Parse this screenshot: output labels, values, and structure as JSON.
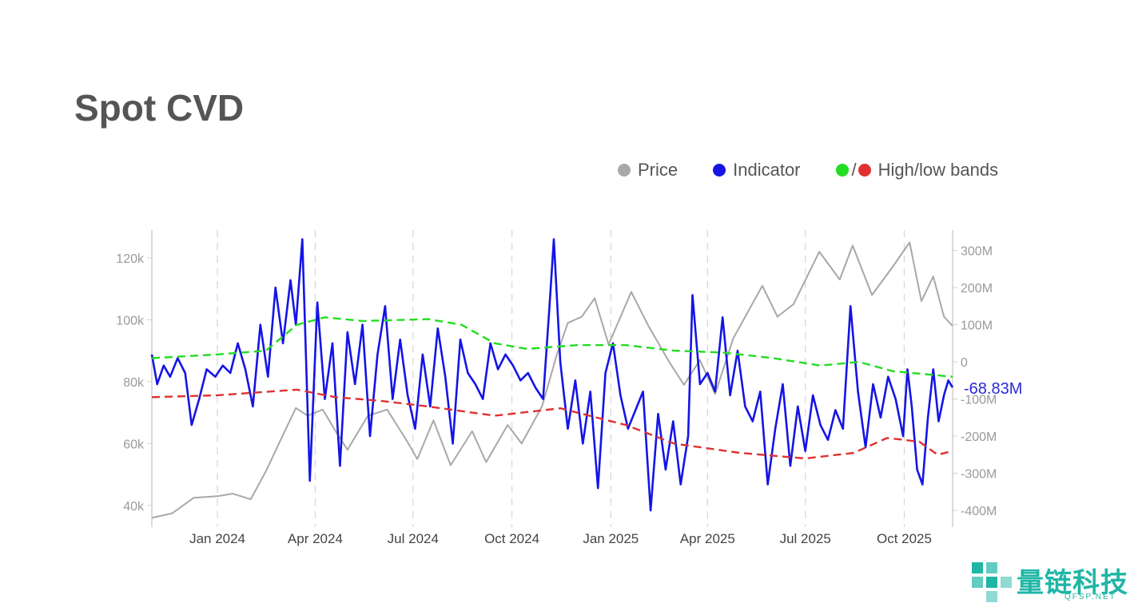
{
  "title": "Spot CVD",
  "legend": {
    "price_label": "Price",
    "indicator_label": "Indicator",
    "slash": "/",
    "bands_label": "High/low bands"
  },
  "colors": {
    "price": "#a8a8a8",
    "indicator": "#1414e6",
    "high_band": "#22dd22",
    "low_band": "#e03030",
    "axis_text": "#9a9a9a",
    "current_value": "#2a2ad8"
  },
  "watermark": {
    "text": "量链科技",
    "sub": "QFSP.NET"
  },
  "chart_data": {
    "type": "line",
    "title": "Spot CVD",
    "x_range": [
      "2023-11-01",
      "2025-11-15"
    ],
    "x_ticks": [
      {
        "date": "2024-01-01",
        "label": "Jan 2024"
      },
      {
        "date": "2024-04-01",
        "label": "Apr 2024"
      },
      {
        "date": "2024-07-01",
        "label": "Jul 2024"
      },
      {
        "date": "2024-10-01",
        "label": "Oct 2024"
      },
      {
        "date": "2025-01-01",
        "label": "Jan 2025"
      },
      {
        "date": "2025-04-01",
        "label": "Apr 2025"
      },
      {
        "date": "2025-07-01",
        "label": "Jul 2025"
      },
      {
        "date": "2025-10-01",
        "label": "Oct 2025"
      }
    ],
    "y_left": {
      "min": 33000,
      "max": 129000,
      "ticks": [
        40000,
        60000,
        80000,
        100000,
        120000
      ],
      "tick_labels": [
        "40k",
        "60k",
        "80k",
        "100k",
        "120k"
      ]
    },
    "y_right": {
      "min": -445,
      "max": 355,
      "ticks": [
        300,
        200,
        100,
        0,
        -100,
        -200,
        -300,
        -400
      ],
      "tick_labels": [
        "300M",
        "200M",
        "100M",
        "0",
        "-100M",
        "-200M",
        "-300M",
        "-400M"
      ]
    },
    "current_value_label": "-68.83M",
    "series": [
      {
        "name": "Price",
        "axis": "left",
        "style": "solid",
        "points": [
          [
            "2023-11-01",
            36000
          ],
          [
            "2023-11-20",
            37500
          ],
          [
            "2023-12-10",
            42500
          ],
          [
            "2024-01-01",
            43000
          ],
          [
            "2024-01-15",
            43800
          ],
          [
            "2024-02-01",
            42000
          ],
          [
            "2024-02-15",
            51000
          ],
          [
            "2024-03-01",
            62000
          ],
          [
            "2024-03-14",
            71500
          ],
          [
            "2024-03-25",
            69000
          ],
          [
            "2024-04-08",
            71000
          ],
          [
            "2024-04-20",
            64000
          ],
          [
            "2024-05-01",
            58000
          ],
          [
            "2024-05-20",
            69000
          ],
          [
            "2024-06-07",
            71000
          ],
          [
            "2024-06-25",
            61000
          ],
          [
            "2024-07-05",
            55000
          ],
          [
            "2024-07-20",
            67500
          ],
          [
            "2024-08-05",
            53000
          ],
          [
            "2024-08-25",
            64000
          ],
          [
            "2024-09-07",
            54000
          ],
          [
            "2024-09-27",
            66000
          ],
          [
            "2024-10-10",
            60000
          ],
          [
            "2024-10-29",
            72000
          ],
          [
            "2024-11-12",
            89000
          ],
          [
            "2024-11-22",
            99000
          ],
          [
            "2024-12-05",
            101000
          ],
          [
            "2024-12-17",
            107000
          ],
          [
            "2024-12-30",
            92000
          ],
          [
            "2025-01-20",
            109000
          ],
          [
            "2025-02-05",
            98000
          ],
          [
            "2025-02-25",
            86000
          ],
          [
            "2025-03-10",
            79000
          ],
          [
            "2025-03-25",
            87000
          ],
          [
            "2025-04-08",
            76000
          ],
          [
            "2025-04-25",
            94000
          ],
          [
            "2025-05-22",
            111000
          ],
          [
            "2025-06-05",
            101000
          ],
          [
            "2025-06-20",
            105000
          ],
          [
            "2025-07-14",
            122000
          ],
          [
            "2025-08-02",
            113000
          ],
          [
            "2025-08-14",
            124000
          ],
          [
            "2025-09-01",
            108000
          ],
          [
            "2025-09-20",
            117000
          ],
          [
            "2025-10-06",
            125000
          ],
          [
            "2025-10-17",
            106000
          ],
          [
            "2025-10-28",
            114000
          ],
          [
            "2025-11-07",
            101000
          ],
          [
            "2025-11-15",
            98000
          ]
        ]
      },
      {
        "name": "Indicator",
        "axis": "right",
        "style": "solid",
        "points": [
          [
            "2023-11-01",
            20
          ],
          [
            "2023-11-06",
            -60
          ],
          [
            "2023-11-12",
            -10
          ],
          [
            "2023-11-18",
            -40
          ],
          [
            "2023-11-25",
            10
          ],
          [
            "2023-12-02",
            -30
          ],
          [
            "2023-12-08",
            -170
          ],
          [
            "2023-12-15",
            -100
          ],
          [
            "2023-12-22",
            -20
          ],
          [
            "2023-12-30",
            -40
          ],
          [
            "2024-01-06",
            -10
          ],
          [
            "2024-01-13",
            -30
          ],
          [
            "2024-01-20",
            50
          ],
          [
            "2024-01-27",
            -20
          ],
          [
            "2024-02-03",
            -120
          ],
          [
            "2024-02-10",
            100
          ],
          [
            "2024-02-17",
            -40
          ],
          [
            "2024-02-24",
            200
          ],
          [
            "2024-03-02",
            50
          ],
          [
            "2024-03-09",
            220
          ],
          [
            "2024-03-14",
            100
          ],
          [
            "2024-03-20",
            330
          ],
          [
            "2024-03-27",
            -320
          ],
          [
            "2024-04-03",
            160
          ],
          [
            "2024-04-10",
            -100
          ],
          [
            "2024-04-17",
            50
          ],
          [
            "2024-04-24",
            -280
          ],
          [
            "2024-05-01",
            80
          ],
          [
            "2024-05-08",
            -60
          ],
          [
            "2024-05-15",
            100
          ],
          [
            "2024-05-22",
            -200
          ],
          [
            "2024-05-29",
            20
          ],
          [
            "2024-06-05",
            150
          ],
          [
            "2024-06-12",
            -100
          ],
          [
            "2024-06-19",
            60
          ],
          [
            "2024-06-26",
            -90
          ],
          [
            "2024-07-03",
            -180
          ],
          [
            "2024-07-10",
            20
          ],
          [
            "2024-07-17",
            -120
          ],
          [
            "2024-07-24",
            90
          ],
          [
            "2024-07-31",
            -40
          ],
          [
            "2024-08-07",
            -220
          ],
          [
            "2024-08-14",
            60
          ],
          [
            "2024-08-21",
            -30
          ],
          [
            "2024-08-28",
            -60
          ],
          [
            "2024-09-04",
            -100
          ],
          [
            "2024-09-11",
            50
          ],
          [
            "2024-09-18",
            -20
          ],
          [
            "2024-09-25",
            20
          ],
          [
            "2024-10-02",
            -10
          ],
          [
            "2024-10-09",
            -50
          ],
          [
            "2024-10-16",
            -30
          ],
          [
            "2024-10-23",
            -70
          ],
          [
            "2024-10-30",
            -100
          ],
          [
            "2024-11-05",
            150
          ],
          [
            "2024-11-09",
            330
          ],
          [
            "2024-11-15",
            0
          ],
          [
            "2024-11-22",
            -180
          ],
          [
            "2024-11-29",
            -50
          ],
          [
            "2024-12-06",
            -220
          ],
          [
            "2024-12-13",
            -80
          ],
          [
            "2024-12-20",
            -340
          ],
          [
            "2024-12-27",
            -30
          ],
          [
            "2025-01-03",
            50
          ],
          [
            "2025-01-10",
            -90
          ],
          [
            "2025-01-17",
            -180
          ],
          [
            "2025-01-24",
            -130
          ],
          [
            "2025-01-31",
            -80
          ],
          [
            "2025-02-07",
            -400
          ],
          [
            "2025-02-14",
            -140
          ],
          [
            "2025-02-21",
            -290
          ],
          [
            "2025-02-28",
            -160
          ],
          [
            "2025-03-07",
            -330
          ],
          [
            "2025-03-14",
            -200
          ],
          [
            "2025-03-18",
            180
          ],
          [
            "2025-03-25",
            -60
          ],
          [
            "2025-04-01",
            -30
          ],
          [
            "2025-04-08",
            -80
          ],
          [
            "2025-04-15",
            120
          ],
          [
            "2025-04-22",
            -90
          ],
          [
            "2025-04-29",
            30
          ],
          [
            "2025-05-06",
            -120
          ],
          [
            "2025-05-13",
            -160
          ],
          [
            "2025-05-20",
            -80
          ],
          [
            "2025-05-27",
            -330
          ],
          [
            "2025-06-03",
            -180
          ],
          [
            "2025-06-10",
            -60
          ],
          [
            "2025-06-17",
            -280
          ],
          [
            "2025-06-24",
            -120
          ],
          [
            "2025-07-01",
            -240
          ],
          [
            "2025-07-08",
            -90
          ],
          [
            "2025-07-15",
            -170
          ],
          [
            "2025-07-22",
            -210
          ],
          [
            "2025-07-29",
            -130
          ],
          [
            "2025-08-05",
            -180
          ],
          [
            "2025-08-12",
            150
          ],
          [
            "2025-08-19",
            -80
          ],
          [
            "2025-08-26",
            -230
          ],
          [
            "2025-09-02",
            -60
          ],
          [
            "2025-09-09",
            -150
          ],
          [
            "2025-09-16",
            -40
          ],
          [
            "2025-09-23",
            -100
          ],
          [
            "2025-09-30",
            -200
          ],
          [
            "2025-10-04",
            -20
          ],
          [
            "2025-10-08",
            -120
          ],
          [
            "2025-10-13",
            -290
          ],
          [
            "2025-10-18",
            -330
          ],
          [
            "2025-10-23",
            -150
          ],
          [
            "2025-10-28",
            -20
          ],
          [
            "2025-11-02",
            -160
          ],
          [
            "2025-11-07",
            -90
          ],
          [
            "2025-11-11",
            -50
          ],
          [
            "2025-11-15",
            -68.83
          ]
        ]
      },
      {
        "name": "High band",
        "axis": "right",
        "style": "dashed",
        "points": [
          [
            "2023-11-01",
            10
          ],
          [
            "2024-01-01",
            20
          ],
          [
            "2024-02-15",
            30
          ],
          [
            "2024-03-15",
            100
          ],
          [
            "2024-04-10",
            120
          ],
          [
            "2024-05-15",
            110
          ],
          [
            "2024-07-15",
            115
          ],
          [
            "2024-08-15",
            100
          ],
          [
            "2024-09-15",
            50
          ],
          [
            "2024-10-15",
            35
          ],
          [
            "2024-12-01",
            45
          ],
          [
            "2025-01-15",
            45
          ],
          [
            "2025-03-01",
            30
          ],
          [
            "2025-04-15",
            25
          ],
          [
            "2025-06-01",
            10
          ],
          [
            "2025-07-15",
            -10
          ],
          [
            "2025-08-20",
            0
          ],
          [
            "2025-09-20",
            -25
          ],
          [
            "2025-11-15",
            -40
          ]
        ]
      },
      {
        "name": "Low band",
        "axis": "right",
        "style": "dashed",
        "points": [
          [
            "2023-11-01",
            -95
          ],
          [
            "2024-01-01",
            -90
          ],
          [
            "2024-03-15",
            -75
          ],
          [
            "2024-04-20",
            -95
          ],
          [
            "2024-06-01",
            -105
          ],
          [
            "2024-07-15",
            -120
          ],
          [
            "2024-09-15",
            -145
          ],
          [
            "2024-11-15",
            -125
          ],
          [
            "2025-01-15",
            -170
          ],
          [
            "2025-03-01",
            -220
          ],
          [
            "2025-05-01",
            -245
          ],
          [
            "2025-07-01",
            -260
          ],
          [
            "2025-08-15",
            -245
          ],
          [
            "2025-09-15",
            -205
          ],
          [
            "2025-10-15",
            -215
          ],
          [
            "2025-11-01",
            -250
          ],
          [
            "2025-11-15",
            -240
          ]
        ]
      }
    ]
  }
}
